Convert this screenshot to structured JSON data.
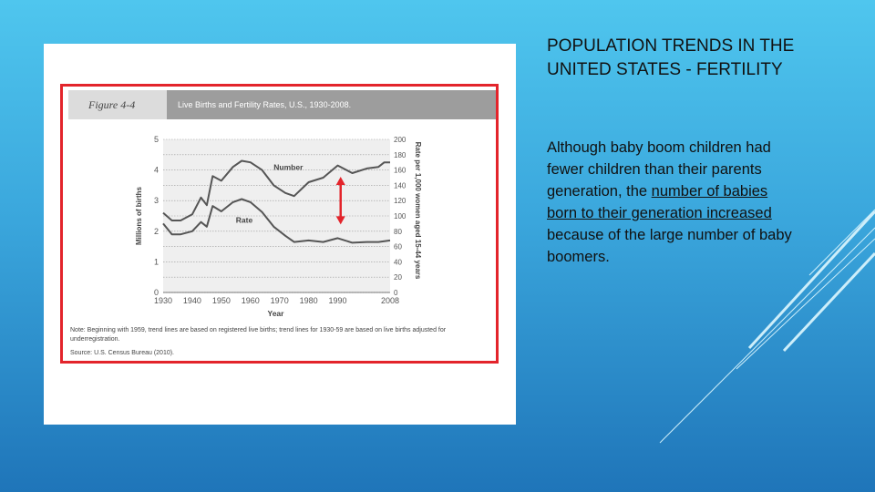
{
  "slide": {
    "title": "POPULATION TRENDS IN THE UNITED STATES - FERTILITY",
    "body_before": "Although baby boom children had fewer children than their parents generation, the ",
    "body_highlight": "number of babies born to their generation increased",
    "body_after": " because of the large number of baby boomers."
  },
  "figure": {
    "label": "Figure 4-4",
    "title": "Live Births and Fertility Rates, U.S., 1930-2008.",
    "note": "Note: Beginning with 1959, trend lines are based on registered live births; trend lines for 1930-59 are based on live births adjusted for underregistration.",
    "source": "Source: U.S. Census Bureau (2010)."
  },
  "colors": {
    "frame": "#e3242b",
    "arrow": "#e3242b",
    "series": "#555555"
  },
  "chart_data": {
    "type": "line",
    "xlabel": "Year",
    "ylabel_left": "Millions of births",
    "ylabel_right": "Rate per 1,000 women aged 15-44 years",
    "x_ticks": [
      "1930",
      "1940",
      "1950",
      "1960",
      "1970",
      "1980",
      "1990",
      "2008"
    ],
    "left_ticks": [
      "0",
      "1",
      "2",
      "3",
      "4",
      "5"
    ],
    "right_ticks": [
      "0",
      "20",
      "40",
      "60",
      "80",
      "100",
      "120",
      "140",
      "160",
      "180",
      "200"
    ],
    "xlim": [
      1930,
      2008
    ],
    "ylim_left": [
      0,
      5
    ],
    "ylim_right": [
      0,
      200
    ],
    "grid": true,
    "series": [
      {
        "name": "Number",
        "axis": "left",
        "x": [
          1930,
          1933,
          1936,
          1940,
          1943,
          1945,
          1947,
          1950,
          1954,
          1957,
          1960,
          1964,
          1968,
          1972,
          1975,
          1980,
          1985,
          1990,
          1995,
          2000,
          2004,
          2006,
          2008
        ],
        "y": [
          2.6,
          2.35,
          2.35,
          2.55,
          3.1,
          2.85,
          3.8,
          3.65,
          4.1,
          4.3,
          4.25,
          4.0,
          3.5,
          3.25,
          3.15,
          3.6,
          3.75,
          4.15,
          3.9,
          4.05,
          4.1,
          4.25,
          4.25
        ]
      },
      {
        "name": "Rate",
        "axis": "right",
        "x": [
          1930,
          1933,
          1936,
          1940,
          1943,
          1945,
          1947,
          1950,
          1954,
          1957,
          1960,
          1964,
          1968,
          1972,
          1975,
          1980,
          1985,
          1990,
          1995,
          2000,
          2004,
          2008
        ],
        "y": [
          90,
          76,
          76,
          80,
          92,
          86,
          113,
          106,
          118,
          122,
          118,
          105,
          86,
          74,
          66,
          68,
          66,
          71,
          65,
          66,
          66,
          68
        ]
      }
    ]
  }
}
